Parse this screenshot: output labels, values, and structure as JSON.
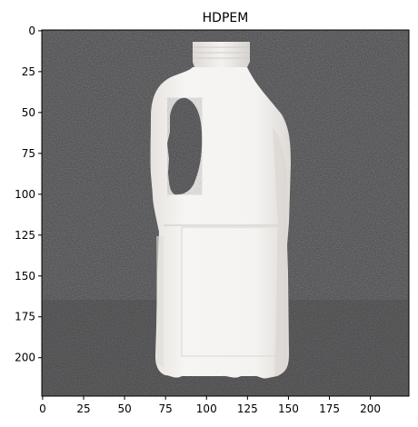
{
  "figure": {
    "title": "HDPEM",
    "colors": {
      "background_carpet": "#4a4a4c",
      "bottle": "#f3f1ef",
      "bottle_shade": "#dcd8d4",
      "axis": "#000000"
    }
  },
  "axes": {
    "x_ticks": [
      "0",
      "25",
      "50",
      "75",
      "100",
      "125",
      "150",
      "175",
      "200"
    ],
    "y_ticks": [
      "0",
      "25",
      "50",
      "75",
      "100",
      "125",
      "150",
      "175",
      "200"
    ],
    "xlim": [
      -0.5,
      223.5
    ],
    "ylim": [
      223.5,
      -0.5
    ]
  },
  "image": {
    "subject": "bottle-icon"
  }
}
